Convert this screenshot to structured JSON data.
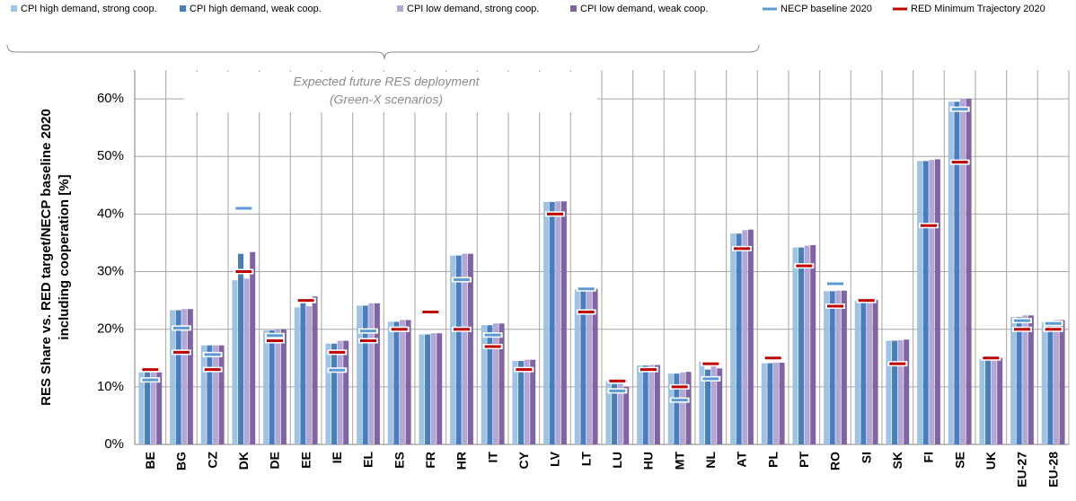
{
  "chart_data": {
    "type": "bar",
    "y_label": [
      "RES Share vs. RED target/NECP baseline 2020",
      "including cooperation [%]"
    ],
    "annotation": [
      "Expected future RES deployment",
      "(Green-X scenarios)"
    ],
    "categories": [
      "BE",
      "BG",
      "CZ",
      "DK",
      "DE",
      "EE",
      "IE",
      "EL",
      "ES",
      "FR",
      "HR",
      "IT",
      "CY",
      "LV",
      "LT",
      "LU",
      "HU",
      "MT",
      "NL",
      "AT",
      "PL",
      "PT",
      "RO",
      "SI",
      "SK",
      "FI",
      "SE",
      "UK",
      "EU-27",
      "EU-28"
    ],
    "series": [
      {
        "name": "CPI high demand, strong coop.",
        "color": "#9dc3e6",
        "style": "bar",
        "values": [
          12.5,
          23.3,
          17.2,
          28.5,
          19.8,
          23.8,
          17.5,
          24.1,
          21.3,
          19.1,
          32.8,
          20.7,
          14.5,
          42.1,
          26.9,
          11,
          13.7,
          12.3,
          14.4,
          36.6,
          14.1,
          34.2,
          26.6,
          24.9,
          18,
          49.2,
          59.5,
          14.8,
          22.1,
          21.2
        ]
      },
      {
        "name": "CPI high demand, weak coop.",
        "color": "#4a7ebb",
        "style": "bar",
        "values": [
          12.5,
          23.3,
          17.2,
          33.1,
          19.8,
          25.2,
          17.5,
          24.1,
          21.3,
          19.1,
          32.8,
          20.7,
          14.5,
          42.1,
          26.9,
          10.5,
          13.7,
          12.3,
          13,
          36.6,
          14.1,
          34.2,
          26.6,
          24.9,
          18,
          49.2,
          59.5,
          14.8,
          22.1,
          21.2
        ]
      },
      {
        "name": "CPI low demand, strong coop.",
        "color": "#b4a7d6",
        "style": "bar",
        "values": [
          12.5,
          23.5,
          17.2,
          28.8,
          20,
          24,
          18,
          24.5,
          21.6,
          19.3,
          33.1,
          21,
          14.7,
          42.2,
          27,
          11,
          13.8,
          12.5,
          14.4,
          37.2,
          14.2,
          34.5,
          26.7,
          25.1,
          18.1,
          49.4,
          60,
          15,
          22.4,
          21.6
        ]
      },
      {
        "name": "CPI low demand, weak coop.",
        "color": "#8064a2",
        "style": "bar",
        "values": [
          12.5,
          23.5,
          17.2,
          33.4,
          20,
          25.7,
          18,
          24.5,
          21.6,
          19.3,
          33.1,
          21,
          14.7,
          42.2,
          27,
          10,
          13.8,
          12.6,
          13.2,
          37.3,
          14.2,
          34.6,
          26.7,
          25.1,
          18.2,
          49.5,
          60,
          15,
          22.4,
          21.6
        ]
      },
      {
        "name": "NECP baseline 2020",
        "color": "#5b9bd5",
        "style": "marker",
        "values": [
          11.2,
          20.2,
          15.6,
          41,
          18.9,
          25,
          12.9,
          19.7,
          20,
          null,
          28.6,
          19,
          null,
          null,
          27,
          9.3,
          null,
          7.7,
          11.4,
          null,
          null,
          null,
          27.9,
          null,
          null,
          null,
          58.2,
          null,
          21.5,
          21
        ]
      },
      {
        "name": "RED Minimum Trajectory 2020",
        "color": "#c00000",
        "style": "marker",
        "values": [
          13,
          16,
          13,
          30,
          18,
          25,
          16,
          18,
          20,
          23,
          20,
          17,
          13,
          40,
          23,
          11,
          13,
          10,
          14,
          34,
          15,
          31,
          24,
          25,
          14,
          38,
          49,
          15,
          20,
          20
        ]
      }
    ],
    "ylim": [
      0,
      65
    ],
    "yticks": [
      {
        "value": 0,
        "label": "0%"
      },
      {
        "value": 10,
        "label": "10%"
      },
      {
        "value": 20,
        "label": "20%"
      },
      {
        "value": 30,
        "label": "30%"
      },
      {
        "value": 40,
        "label": "40%"
      },
      {
        "value": 50,
        "label": "50%"
      },
      {
        "value": 60,
        "label": "60%"
      }
    ],
    "grid": true
  }
}
